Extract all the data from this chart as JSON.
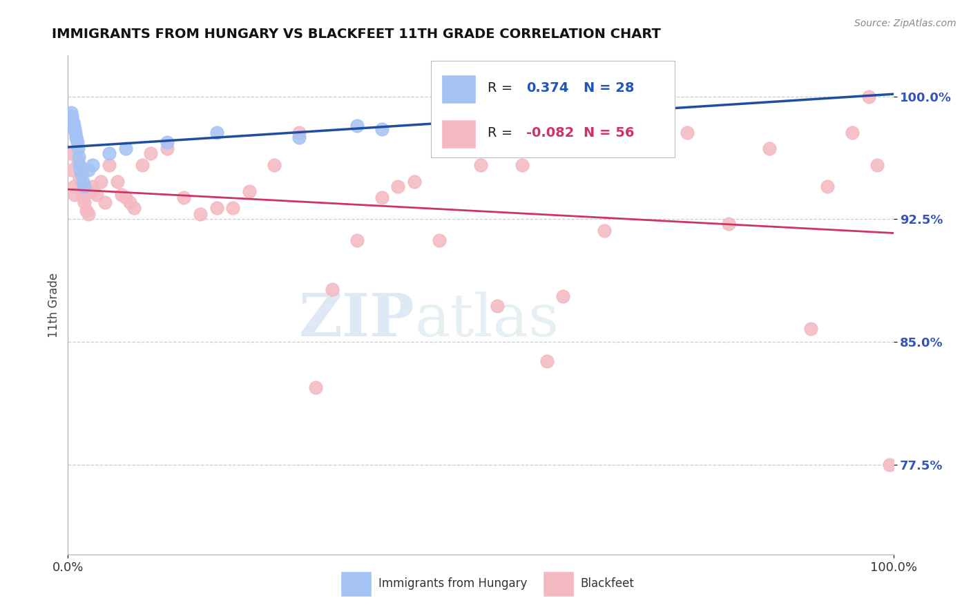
{
  "title": "IMMIGRANTS FROM HUNGARY VS BLACKFEET 11TH GRADE CORRELATION CHART",
  "source_text": "Source: ZipAtlas.com",
  "ylabel": "11th Grade",
  "xlim": [
    0.0,
    1.0
  ],
  "ylim": [
    0.72,
    1.025
  ],
  "yticks": [
    0.775,
    0.85,
    0.925,
    1.0
  ],
  "ytick_labels": [
    "77.5%",
    "85.0%",
    "92.5%",
    "100.0%"
  ],
  "xticks": [
    0.0,
    1.0
  ],
  "xtick_labels": [
    "0.0%",
    "100.0%"
  ],
  "blue_R": 0.374,
  "blue_N": 28,
  "pink_R": -0.082,
  "pink_N": 56,
  "blue_color": "#a4c2f4",
  "pink_color": "#f4b8c1",
  "blue_line_color": "#1f4e9e",
  "pink_line_color": "#cc3366",
  "legend_label_blue": "Immigrants from Hungary",
  "legend_label_pink": "Blackfeet",
  "blue_x": [
    0.002,
    0.003,
    0.004,
    0.005,
    0.006,
    0.007,
    0.008,
    0.009,
    0.01,
    0.011,
    0.012,
    0.013,
    0.014,
    0.015,
    0.016,
    0.018,
    0.02,
    0.025,
    0.03,
    0.05,
    0.07,
    0.12,
    0.18,
    0.28,
    0.35,
    0.38,
    0.55,
    0.62
  ],
  "blue_y": [
    0.985,
    0.987,
    0.99,
    0.988,
    0.984,
    0.982,
    0.98,
    0.978,
    0.975,
    0.972,
    0.968,
    0.963,
    0.958,
    0.955,
    0.952,
    0.948,
    0.945,
    0.955,
    0.958,
    0.965,
    0.968,
    0.972,
    0.978,
    0.975,
    0.982,
    0.98,
    0.988,
    0.992
  ],
  "pink_x": [
    0.003,
    0.005,
    0.007,
    0.008,
    0.01,
    0.012,
    0.014,
    0.016,
    0.018,
    0.02,
    0.022,
    0.025,
    0.028,
    0.03,
    0.035,
    0.04,
    0.045,
    0.05,
    0.06,
    0.065,
    0.07,
    0.075,
    0.08,
    0.09,
    0.1,
    0.12,
    0.14,
    0.16,
    0.18,
    0.2,
    0.22,
    0.25,
    0.28,
    0.3,
    0.32,
    0.35,
    0.38,
    0.4,
    0.42,
    0.45,
    0.5,
    0.52,
    0.55,
    0.58,
    0.6,
    0.65,
    0.7,
    0.75,
    0.8,
    0.85,
    0.9,
    0.92,
    0.95,
    0.97,
    0.98,
    0.995
  ],
  "pink_y": [
    0.965,
    0.955,
    0.945,
    0.94,
    0.975,
    0.96,
    0.95,
    0.942,
    0.938,
    0.935,
    0.93,
    0.928,
    0.942,
    0.945,
    0.94,
    0.948,
    0.935,
    0.958,
    0.948,
    0.94,
    0.938,
    0.935,
    0.932,
    0.958,
    0.965,
    0.968,
    0.938,
    0.928,
    0.932,
    0.932,
    0.942,
    0.958,
    0.978,
    0.822,
    0.882,
    0.912,
    0.938,
    0.945,
    0.948,
    0.912,
    0.958,
    0.872,
    0.958,
    0.838,
    0.878,
    0.918,
    0.968,
    0.978,
    0.922,
    0.968,
    0.858,
    0.945,
    0.978,
    1.0,
    0.958,
    0.775
  ]
}
